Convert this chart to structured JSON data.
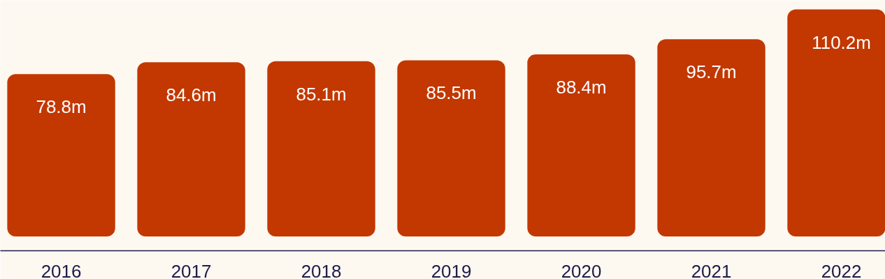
{
  "chart_data": {
    "type": "bar",
    "categories": [
      "2016",
      "2017",
      "2018",
      "2019",
      "2020",
      "2021",
      "2022"
    ],
    "values": [
      78.8,
      84.6,
      85.1,
      85.5,
      88.4,
      95.7,
      110.2
    ],
    "value_labels": [
      "78.8m",
      "84.6m",
      "85.1m",
      "85.5m",
      "88.4m",
      "95.7m",
      "110.2m"
    ],
    "color": "#c23800",
    "grid": false
  }
}
